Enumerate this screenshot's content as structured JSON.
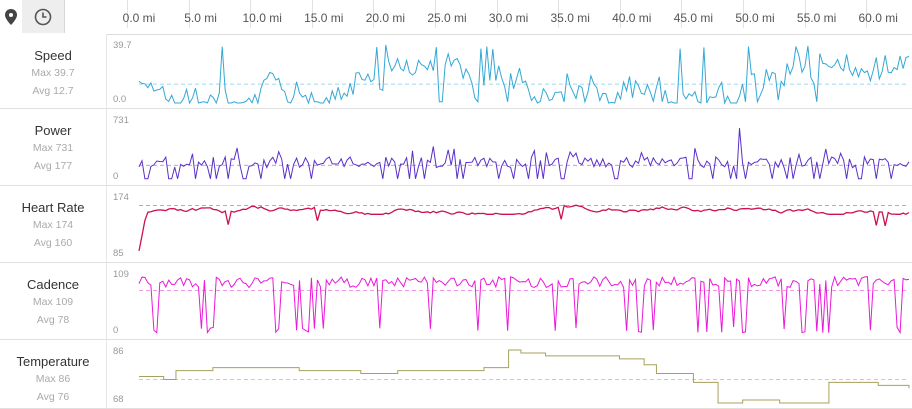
{
  "toolbar": {
    "map_icon": "map-pin-icon",
    "clock_icon": "clock-icon"
  },
  "x_axis": [
    "0.0 mi",
    "5.0 mi",
    "10.0 mi",
    "15.0 mi",
    "20.0 mi",
    "25.0 mi",
    "30.0 mi",
    "35.0 mi",
    "40.0 mi",
    "45.0 mi",
    "50.0 mi",
    "55.0 mi",
    "60.0 mi"
  ],
  "metrics": [
    {
      "name": "Speed",
      "max": "Max 39.7",
      "avg": "Avg 12.7",
      "ymax": "39.7",
      "ymin": "0.0",
      "color": "#33a8d6"
    },
    {
      "name": "Power",
      "max": "Max 731",
      "avg": "Avg 177",
      "ymax": "731",
      "ymin": "0",
      "color": "#5b2fc9"
    },
    {
      "name": "Heart Rate",
      "max": "Max 174",
      "avg": "Avg 160",
      "ymax": "174",
      "ymin": "85",
      "color": "#cc1150"
    },
    {
      "name": "Cadence",
      "max": "Max 109",
      "avg": "Avg 78",
      "ymax": "109",
      "ymin": "0",
      "color": "#ea19d8"
    },
    {
      "name": "Temperature",
      "max": "Max 86",
      "avg": "Avg 76",
      "ymax": "86",
      "ymin": "68",
      "color": "#a8a15c"
    }
  ],
  "chart_data": [
    {
      "type": "line",
      "title": "Speed",
      "ylim": [
        0,
        39.7
      ],
      "avg": 12.7,
      "x_unit": "mi",
      "xlim": [
        0,
        62.5
      ]
    },
    {
      "type": "line",
      "title": "Power",
      "ylim": [
        0,
        731
      ],
      "avg": 177,
      "x_unit": "mi",
      "xlim": [
        0,
        62.5
      ]
    },
    {
      "type": "line",
      "title": "Heart Rate",
      "ylim": [
        85,
        174
      ],
      "avg": 160,
      "x_unit": "mi",
      "xlim": [
        0,
        62.5
      ]
    },
    {
      "type": "line",
      "title": "Cadence",
      "ylim": [
        0,
        109
      ],
      "avg": 78,
      "x_unit": "mi",
      "xlim": [
        0,
        62.5
      ]
    },
    {
      "type": "line",
      "title": "Temperature",
      "ylim": [
        68,
        86
      ],
      "avg": 76,
      "x_unit": "mi",
      "xlim": [
        0,
        62.5
      ],
      "x": [
        0,
        2,
        3,
        6,
        7,
        8,
        13,
        15,
        18,
        19,
        20,
        21,
        22,
        25,
        27,
        28,
        29,
        30,
        31,
        33,
        35,
        36,
        38,
        39,
        40,
        41,
        42,
        45,
        47,
        48,
        49,
        50,
        52,
        55,
        56,
        58,
        60,
        62.5
      ],
      "y": [
        77,
        76,
        79,
        80,
        80,
        80,
        79,
        79,
        78,
        78,
        78,
        79,
        79,
        79,
        79,
        80,
        80,
        86,
        85,
        84,
        84,
        84,
        84,
        83,
        83,
        81,
        78,
        75,
        68,
        68,
        69,
        69,
        68,
        68,
        75,
        75,
        74,
        73
      ]
    }
  ]
}
